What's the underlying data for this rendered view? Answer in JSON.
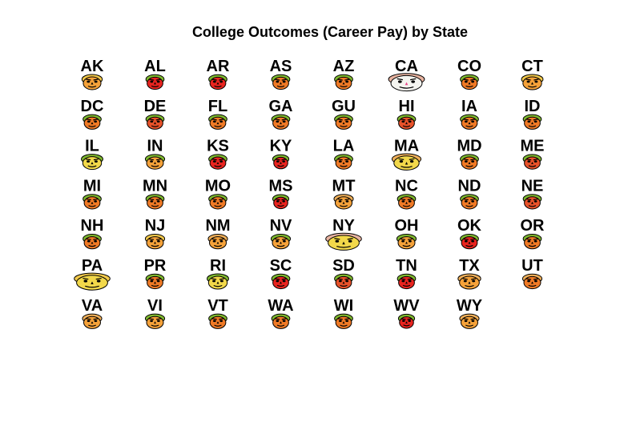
{
  "chart_data": {
    "type": "chernoff-faces",
    "title": "College Outcomes (Career Pay) by State",
    "colors": {
      "hair": "#7fb82e",
      "outline": "#000000",
      "red": "#e8241f",
      "orange": "#f07a26",
      "yellow": "#f2d84a",
      "pink": "#f0a0a0",
      "tan": "#e8b3a0"
    },
    "faces": [
      {
        "state": "AK",
        "color": "#f5a23a",
        "width": 0.85,
        "hair": "#f2c94a",
        "size": 1.0
      },
      {
        "state": "AL",
        "color": "#e8241f",
        "width": 0.8,
        "hair": "#7fb82e",
        "size": 0.95
      },
      {
        "state": "AR",
        "color": "#e8241f",
        "width": 0.8,
        "hair": "#7fb82e",
        "size": 0.95
      },
      {
        "state": "AS",
        "color": "#f07a26",
        "width": 0.8,
        "hair": "#7fb82e",
        "size": 0.95
      },
      {
        "state": "AZ",
        "color": "#f07a26",
        "width": 0.8,
        "hair": "#7fb82e",
        "size": 0.95
      },
      {
        "state": "CA",
        "color": "#f5f5f0",
        "width": 1.25,
        "hair": "#e8b3a0",
        "size": 1.2,
        "nose": "#e84a8a"
      },
      {
        "state": "CO",
        "color": "#f07a26",
        "width": 0.8,
        "hair": "#7fb82e",
        "size": 0.95
      },
      {
        "state": "CT",
        "color": "#f5a23a",
        "width": 0.9,
        "hair": "#f2c94a",
        "size": 1.0
      },
      {
        "state": "DC",
        "color": "#f07a26",
        "width": 0.8,
        "hair": "#7fb82e",
        "size": 0.95
      },
      {
        "state": "DE",
        "color": "#e8522a",
        "width": 0.8,
        "hair": "#7fb82e",
        "size": 0.95
      },
      {
        "state": "FL",
        "color": "#f07a26",
        "width": 0.8,
        "hair": "#7fb82e",
        "size": 0.95
      },
      {
        "state": "GA",
        "color": "#f07a26",
        "width": 0.8,
        "hair": "#7fb82e",
        "size": 0.95
      },
      {
        "state": "GU",
        "color": "#f07a26",
        "width": 0.8,
        "hair": "#7fb82e",
        "size": 0.95
      },
      {
        "state": "HI",
        "color": "#e8522a",
        "width": 0.8,
        "hair": "#7fb82e",
        "size": 0.95
      },
      {
        "state": "IA",
        "color": "#f07a26",
        "width": 0.8,
        "hair": "#7fb82e",
        "size": 0.95
      },
      {
        "state": "ID",
        "color": "#f07a26",
        "width": 0.8,
        "hair": "#7fb82e",
        "size": 0.95
      },
      {
        "state": "IL",
        "color": "#f2d84a",
        "width": 0.9,
        "hair": "#7fb82e",
        "size": 1.0
      },
      {
        "state": "IN",
        "color": "#f5a23a",
        "width": 0.85,
        "hair": "#7fb82e",
        "size": 0.95
      },
      {
        "state": "KS",
        "color": "#e8241f",
        "width": 0.8,
        "hair": "#7fb82e",
        "size": 0.95
      },
      {
        "state": "KY",
        "color": "#e8241f",
        "width": 0.75,
        "hair": "#7fb82e",
        "size": 0.9
      },
      {
        "state": "LA",
        "color": "#f07a26",
        "width": 0.8,
        "hair": "#7fb82e",
        "size": 0.95
      },
      {
        "state": "MA",
        "color": "#f2d84a",
        "width": 1.1,
        "hair": "#f0b05a",
        "size": 1.1
      },
      {
        "state": "MD",
        "color": "#f07a26",
        "width": 0.8,
        "hair": "#7fb82e",
        "size": 0.95
      },
      {
        "state": "ME",
        "color": "#e8522a",
        "width": 0.8,
        "hair": "#7fb82e",
        "size": 0.95
      },
      {
        "state": "MI",
        "color": "#f07a26",
        "width": 0.8,
        "hair": "#7fb82e",
        "size": 0.95
      },
      {
        "state": "MN",
        "color": "#f07a26",
        "width": 0.8,
        "hair": "#7fb82e",
        "size": 0.95
      },
      {
        "state": "MO",
        "color": "#f07a26",
        "width": 0.8,
        "hair": "#7fb82e",
        "size": 0.95
      },
      {
        "state": "MS",
        "color": "#e8241f",
        "width": 0.75,
        "hair": "#7fb82e",
        "size": 0.9
      },
      {
        "state": "MT",
        "color": "#f5a23a",
        "width": 0.85,
        "hair": "#f0b05a",
        "size": 0.95
      },
      {
        "state": "NC",
        "color": "#f07a26",
        "width": 0.8,
        "hair": "#7fb82e",
        "size": 0.95
      },
      {
        "state": "ND",
        "color": "#f07a26",
        "width": 0.8,
        "hair": "#7fb82e",
        "size": 0.95
      },
      {
        "state": "NE",
        "color": "#e8522a",
        "width": 0.8,
        "hair": "#7fb82e",
        "size": 0.95
      },
      {
        "state": "NH",
        "color": "#f07a26",
        "width": 0.8,
        "hair": "#7fb82e",
        "size": 0.95
      },
      {
        "state": "NJ",
        "color": "#f5a23a",
        "width": 0.85,
        "hair": "#f2c94a",
        "size": 0.95
      },
      {
        "state": "NM",
        "color": "#f5a23a",
        "width": 0.85,
        "hair": "#f0b05a",
        "size": 0.95
      },
      {
        "state": "NV",
        "color": "#f5a23a",
        "width": 0.85,
        "hair": "#7fb82e",
        "size": 0.95
      },
      {
        "state": "NY",
        "color": "#f2d84a",
        "width": 1.3,
        "hair": "#e8b3a0",
        "size": 1.15
      },
      {
        "state": "OH",
        "color": "#f5a23a",
        "width": 0.85,
        "hair": "#7fb82e",
        "size": 0.95
      },
      {
        "state": "OK",
        "color": "#e8241f",
        "width": 0.8,
        "hair": "#7fb82e",
        "size": 0.95
      },
      {
        "state": "OR",
        "color": "#f07a26",
        "width": 0.8,
        "hair": "#7fb82e",
        "size": 0.95
      },
      {
        "state": "PA",
        "color": "#f2d84a",
        "width": 1.3,
        "hair": "#f2c94a",
        "size": 1.15
      },
      {
        "state": "PR",
        "color": "#f07a26",
        "width": 0.8,
        "hair": "#7fb82e",
        "size": 0.95
      },
      {
        "state": "RI",
        "color": "#f2d84a",
        "width": 0.9,
        "hair": "#7fb82e",
        "size": 1.0
      },
      {
        "state": "SC",
        "color": "#e8241f",
        "width": 0.8,
        "hair": "#7fb82e",
        "size": 0.95
      },
      {
        "state": "SD",
        "color": "#e8522a",
        "width": 0.8,
        "hair": "#7fb82e",
        "size": 0.95
      },
      {
        "state": "TN",
        "color": "#e8241f",
        "width": 0.8,
        "hair": "#7fb82e",
        "size": 0.95
      },
      {
        "state": "TX",
        "color": "#f5a23a",
        "width": 0.95,
        "hair": "#f0b05a",
        "size": 1.0
      },
      {
        "state": "UT",
        "color": "#f07a26",
        "width": 0.85,
        "hair": "#f0b05a",
        "size": 0.95
      },
      {
        "state": "VA",
        "color": "#f5a23a",
        "width": 0.85,
        "hair": "#f0b05a",
        "size": 0.95
      },
      {
        "state": "VI",
        "color": "#f5a23a",
        "width": 0.85,
        "hair": "#7fb82e",
        "size": 0.95
      },
      {
        "state": "VT",
        "color": "#f07a26",
        "width": 0.8,
        "hair": "#7fb82e",
        "size": 0.95
      },
      {
        "state": "WA",
        "color": "#f07a26",
        "width": 0.8,
        "hair": "#7fb82e",
        "size": 0.95
      },
      {
        "state": "WI",
        "color": "#f07a26",
        "width": 0.8,
        "hair": "#7fb82e",
        "size": 0.95
      },
      {
        "state": "WV",
        "color": "#e8241f",
        "width": 0.75,
        "hair": "#7fb82e",
        "size": 0.9
      },
      {
        "state": "WY",
        "color": "#f5a23a",
        "width": 0.85,
        "hair": "#f0b05a",
        "size": 0.95
      }
    ]
  }
}
